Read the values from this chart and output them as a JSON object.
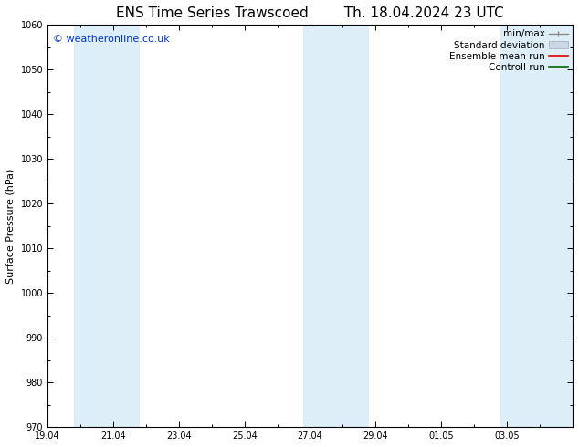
{
  "title_left": "ENS Time Series Trawscoed",
  "title_right": "Th. 18.04.2024 23 UTC",
  "ylabel": "Surface Pressure (hPa)",
  "ylim": [
    970,
    1060
  ],
  "yticks": [
    970,
    980,
    990,
    1000,
    1010,
    1020,
    1030,
    1040,
    1050,
    1060
  ],
  "xtick_labels": [
    "19.04",
    "21.04",
    "23.04",
    "25.04",
    "27.04",
    "29.04",
    "01.05",
    "03.05"
  ],
  "xtick_positions": [
    0,
    2,
    4,
    6,
    8,
    10,
    12,
    14
  ],
  "xlim": [
    0,
    16
  ],
  "watermark": "© weatheronline.co.uk",
  "watermark_color": "#0033cc",
  "bg_color": "#ffffff",
  "plot_bg_color": "#ffffff",
  "shaded_bands": [
    {
      "x_start": 0.8,
      "x_end": 2.8,
      "color": "#ddeef8"
    },
    {
      "x_start": 7.8,
      "x_end": 9.8,
      "color": "#ddeef8"
    },
    {
      "x_start": 13.8,
      "x_end": 16.2,
      "color": "#ddeef8"
    }
  ],
  "title_fontsize": 11,
  "label_fontsize": 8,
  "tick_fontsize": 7,
  "legend_fontsize": 7.5,
  "watermark_fontsize": 8,
  "spine_color": "#000000",
  "legend_text_color": "#000000"
}
